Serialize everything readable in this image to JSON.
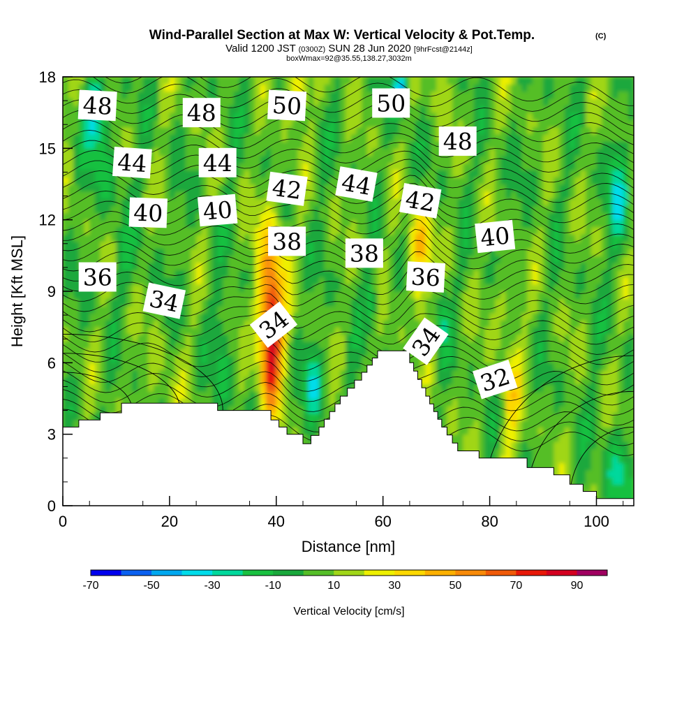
{
  "title": "Wind-Parallel Section at Max W: Vertical Velocity & Pot.Temp.",
  "copyright": "(C)",
  "subtitle_parts": [
    "Valid 1200 JST ",
    "(0300Z)",
    " SUN 28 Jun 2020 ",
    "[9hrFcst@2144z]"
  ],
  "subtitle2": "boxWmax=92@35.55,138.27,3032m",
  "chart_data": {
    "type": "heatmap",
    "xlabel": "Distance [nm]",
    "ylabel": "Height [Kft MSL]",
    "xlim": [
      0,
      107
    ],
    "ylim": [
      0,
      18
    ],
    "xticks": [
      0,
      20,
      40,
      60,
      80,
      100
    ],
    "yticks": [
      0,
      3,
      6,
      9,
      12,
      15,
      18
    ],
    "colorbar": {
      "label": "Vertical Velocity [cm/s]",
      "tick_values": [
        -70,
        -50,
        -30,
        -10,
        10,
        30,
        50,
        70,
        90
      ],
      "levels": [
        -70,
        -60,
        -50,
        -40,
        -30,
        -20,
        -10,
        0,
        10,
        20,
        30,
        40,
        50,
        60,
        70,
        80,
        90,
        100
      ],
      "colors": [
        "#0000ee",
        "#0a60f0",
        "#00a8f0",
        "#00dcea",
        "#00d89c",
        "#19c040",
        "#1aa83c",
        "#55be28",
        "#a0d618",
        "#eef000",
        "#fcd800",
        "#fcb000",
        "#f88a08",
        "#f05a08",
        "#e81808",
        "#d40020",
        "#a00060"
      ]
    },
    "terrain_top_kft": [
      [
        0,
        3.3
      ],
      [
        3,
        3.6
      ],
      [
        7,
        3.9
      ],
      [
        11,
        4.3
      ],
      [
        29,
        4.0
      ],
      [
        39,
        3.6
      ],
      [
        42,
        3.0
      ],
      [
        45,
        2.6
      ],
      [
        48,
        3.3
      ],
      [
        52,
        4.6
      ],
      [
        56,
        5.6
      ],
      [
        59,
        6.5
      ],
      [
        65,
        6.0
      ],
      [
        68,
        4.6
      ],
      [
        71,
        3.3
      ],
      [
        74,
        2.3
      ],
      [
        78,
        2.0
      ],
      [
        87,
        1.6
      ],
      [
        92,
        1.3
      ],
      [
        95,
        0.9
      ],
      [
        100,
        0.3
      ],
      [
        107,
        0.3
      ]
    ],
    "isentrope_labels": [
      {
        "text": "48",
        "x": 6.5,
        "y": 16.8,
        "angle": 3
      },
      {
        "text": "48",
        "x": 26,
        "y": 16.5,
        "angle": 0
      },
      {
        "text": "50",
        "x": 42,
        "y": 16.8,
        "angle": 3
      },
      {
        "text": "50",
        "x": 61.5,
        "y": 16.9,
        "angle": 0
      },
      {
        "text": "48",
        "x": 74,
        "y": 15.3,
        "angle": 0
      },
      {
        "text": "44",
        "x": 13,
        "y": 14.4,
        "angle": 4
      },
      {
        "text": "44",
        "x": 29,
        "y": 14.4,
        "angle": 0
      },
      {
        "text": "42",
        "x": 42,
        "y": 13.3,
        "angle": 8
      },
      {
        "text": "44",
        "x": 55,
        "y": 13.5,
        "angle": 10
      },
      {
        "text": "42",
        "x": 67,
        "y": 12.8,
        "angle": 10
      },
      {
        "text": "40",
        "x": 16,
        "y": 12.3,
        "angle": 2
      },
      {
        "text": "40",
        "x": 29,
        "y": 12.4,
        "angle": -5
      },
      {
        "text": "40",
        "x": 81,
        "y": 11.3,
        "angle": -6
      },
      {
        "text": "38",
        "x": 42,
        "y": 11.1,
        "angle": 0
      },
      {
        "text": "38",
        "x": 56.5,
        "y": 10.6,
        "angle": 0
      },
      {
        "text": "36",
        "x": 6.5,
        "y": 9.6,
        "angle": 0
      },
      {
        "text": "36",
        "x": 68,
        "y": 9.6,
        "angle": 3
      },
      {
        "text": "34",
        "x": 19,
        "y": 8.6,
        "angle": 12
      },
      {
        "text": "34",
        "x": 39.5,
        "y": 7.6,
        "angle": -38
      },
      {
        "text": "34",
        "x": 68,
        "y": 6.9,
        "angle": -55
      },
      {
        "text": "32",
        "x": 81,
        "y": 5.3,
        "angle": -18
      }
    ]
  }
}
